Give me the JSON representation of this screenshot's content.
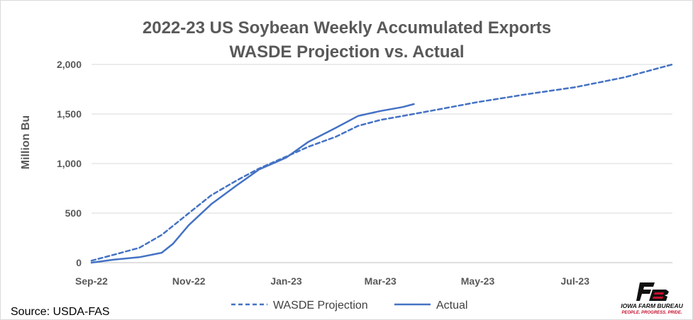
{
  "chart_data": {
    "type": "line",
    "title": "2022-23 US Soybean Weekly Accumulated Exports",
    "subtitle": "WASDE Projection vs. Actual",
    "ylabel": "Million Bu",
    "xlabel": "",
    "ylim": [
      0,
      2000
    ],
    "yticks": [
      0,
      500,
      1000,
      1500,
      2000
    ],
    "ytick_labels": [
      "0",
      "500",
      "1,000",
      "1,500",
      "2,000"
    ],
    "xlim": [
      "2022-09-01",
      "2023-08-31"
    ],
    "xticks": [
      "2022-09-01",
      "2022-11-01",
      "2023-01-01",
      "2023-03-01",
      "2023-05-01",
      "2023-07-01"
    ],
    "xtick_labels": [
      "Sep-22",
      "Nov-22",
      "Jan-23",
      "Mar-23",
      "May-23",
      "Jul-23"
    ],
    "grid": true,
    "legend_position": "bottom",
    "colors": {
      "line": "#4472c4",
      "grid": "#d9d9d9",
      "axis": "#bfbfbf",
      "text": "#595959"
    },
    "series": [
      {
        "name": "WASDE Projection",
        "style": "dashed",
        "x": [
          "2022-09-01",
          "2022-09-15",
          "2022-10-01",
          "2022-10-15",
          "2022-11-01",
          "2022-11-15",
          "2022-12-01",
          "2022-12-15",
          "2023-01-01",
          "2023-01-15",
          "2023-02-01",
          "2023-02-15",
          "2023-03-01",
          "2023-03-15",
          "2023-04-01",
          "2023-05-01",
          "2023-06-01",
          "2023-07-01",
          "2023-08-01",
          "2023-08-31"
        ],
        "y": [
          20,
          80,
          150,
          280,
          500,
          680,
          830,
          950,
          1070,
          1170,
          1270,
          1380,
          1440,
          1480,
          1530,
          1620,
          1700,
          1770,
          1870,
          2000
        ]
      },
      {
        "name": "Actual",
        "style": "solid",
        "x": [
          "2022-09-01",
          "2022-09-15",
          "2022-10-01",
          "2022-10-15",
          "2022-10-22",
          "2022-11-01",
          "2022-11-15",
          "2022-12-01",
          "2022-12-15",
          "2023-01-01",
          "2023-01-15",
          "2023-02-01",
          "2023-02-15",
          "2023-03-01",
          "2023-03-15",
          "2023-03-22"
        ],
        "y": [
          0,
          30,
          55,
          100,
          190,
          380,
          590,
          780,
          940,
          1060,
          1220,
          1360,
          1480,
          1530,
          1570,
          1600
        ]
      }
    ]
  },
  "source": {
    "label": "Source: USDA-FAS"
  },
  "logo": {
    "mark": "FB",
    "name": "IOWA FARM BUREAU",
    "tagline": "PEOPLE. PROGRESS. PRIDE.",
    "colors": {
      "dark": "#111111",
      "red": "#c8102e"
    }
  }
}
